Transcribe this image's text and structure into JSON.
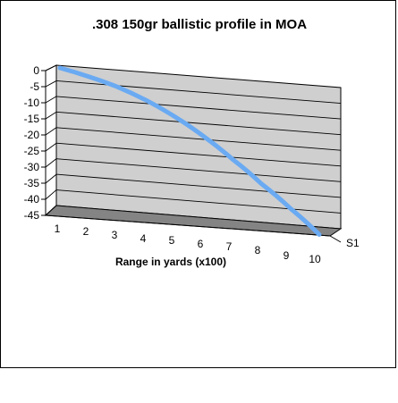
{
  "chart_data": {
    "type": "line",
    "title": ".308 150gr ballistic profile in MOA",
    "xlabel": "Range in yards (x100)",
    "ylabel": "",
    "categories": [
      "1",
      "2",
      "3",
      "4",
      "5",
      "6",
      "7",
      "8",
      "9",
      "10"
    ],
    "y_ticks": [
      "0",
      "-5",
      "-10",
      "-15",
      "-20",
      "-25",
      "-30",
      "-35",
      "-40",
      "-45"
    ],
    "ylim": [
      -45,
      0
    ],
    "series": [
      {
        "name": "S1",
        "values": [
          0,
          -2,
          -4.5,
          -8,
          -12.5,
          -18,
          -24.5,
          -31.5,
          -38.5,
          -46
        ]
      }
    ],
    "grid": true,
    "three_d": true,
    "legend": "right"
  },
  "colors": {
    "series_line": "#6aaaf2",
    "back_wall": "#cfcfcf",
    "floor": "#848484"
  }
}
